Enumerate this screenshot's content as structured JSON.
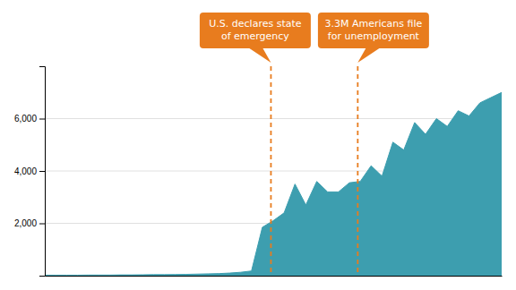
{
  "chart_data": {
    "type": "area",
    "x": [
      0,
      1,
      2,
      3,
      4,
      5,
      6,
      7,
      8,
      9,
      10,
      11,
      12,
      13,
      14,
      15,
      16,
      17,
      18,
      19,
      20,
      21,
      22,
      23,
      24,
      25,
      26,
      27,
      28,
      29,
      30,
      31,
      32,
      33,
      34,
      35,
      36,
      37,
      38,
      39,
      40,
      41,
      42
    ],
    "values": [
      20,
      20,
      20,
      20,
      25,
      25,
      25,
      30,
      30,
      35,
      40,
      40,
      45,
      50,
      60,
      70,
      80,
      100,
      130,
      180,
      1850,
      2100,
      2400,
      3500,
      2700,
      3600,
      3200,
      3200,
      3550,
      3600,
      4200,
      3800,
      5100,
      4800,
      5850,
      5400,
      6000,
      5700,
      6300,
      6100,
      6600,
      6800,
      7000
    ],
    "color": "#3d9eaf",
    "xlim": [
      0,
      42
    ],
    "ylim": [
      0,
      8000
    ],
    "yticks": [
      {
        "value": 2000,
        "label": "2,000"
      },
      {
        "value": 4000,
        "label": "4,000"
      },
      {
        "value": 6000,
        "label": "6,000"
      }
    ],
    "grid": true,
    "tick_labels": "y",
    "annotations": [
      {
        "text": "U.S. declares state\nof emergency",
        "x": 20.79,
        "color": "#e87c1e"
      },
      {
        "text": "3.3M Americans file\nfor unemployment",
        "x": 28.77,
        "color": "#e87c1e"
      }
    ]
  }
}
